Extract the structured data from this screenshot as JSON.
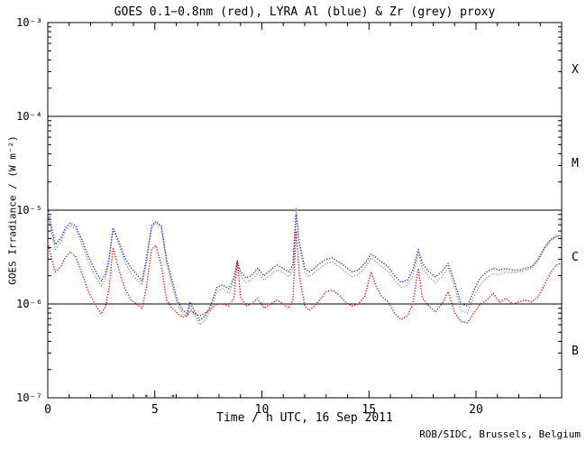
{
  "credit": "ROB/SIDC, Brussels, Belgium",
  "chart_data": {
    "type": "scatter",
    "title": "GOES 0.1−0.8nm (red), LYRA Al (blue) & Zr (grey) proxy",
    "xlabel": "Time / h UTC, 16 Sep 2011",
    "ylabel": "GOES Irradiance / (W m⁻²)",
    "x_range": [
      0,
      24
    ],
    "x_major_ticks": [
      0,
      5,
      10,
      15,
      20
    ],
    "x_minor_step": 1,
    "y_scale": "log",
    "y_range_exp": [
      -7,
      -3
    ],
    "y_tick_labels": [
      "10⁻³",
      "10⁻⁴",
      "10⁻⁵",
      "10⁻⁶",
      "10⁻⁷"
    ],
    "hline_values_exp": [
      -4,
      -5,
      -6
    ],
    "flare_classes": [
      {
        "label": "X",
        "exp_range": [
          -4,
          -3
        ]
      },
      {
        "label": "M",
        "exp_range": [
          -5,
          -4
        ]
      },
      {
        "label": "C",
        "exp_range": [
          -6,
          -5
        ]
      },
      {
        "label": "B",
        "exp_range": [
          -7,
          -6
        ]
      }
    ],
    "grid": "off",
    "legend": "in-title",
    "colors": {
      "axis": "#000000",
      "goes_red": "#dd1111",
      "lyra_al_blue": "#2233cc",
      "lyra_zr_grey": "#999999"
    },
    "unit_scale": 1e-06,
    "unit": "W m^-2 (values stored in units of 1e-6)",
    "hours": [
      0,
      0.15,
      0.35,
      0.6,
      0.85,
      1.05,
      1.3,
      1.6,
      1.9,
      2.2,
      2.5,
      2.7,
      2.85,
      3.05,
      3.3,
      3.6,
      3.9,
      4.2,
      4.4,
      4.6,
      4.85,
      5.05,
      5.3,
      5.55,
      5.8,
      6.05,
      6.3,
      6.5,
      6.65,
      6.9,
      7.1,
      7.35,
      7.6,
      7.9,
      8.15,
      8.45,
      8.7,
      8.85,
      9.0,
      9.25,
      9.5,
      9.8,
      10.1,
      10.4,
      10.7,
      11.0,
      11.25,
      11.45,
      11.6,
      11.75,
      12.0,
      12.2,
      12.45,
      12.7,
      13.0,
      13.3,
      13.6,
      13.9,
      14.2,
      14.5,
      14.8,
      15.1,
      15.35,
      15.6,
      15.9,
      16.2,
      16.5,
      16.8,
      17.05,
      17.3,
      17.5,
      17.8,
      18.1,
      18.4,
      18.7,
      19.0,
      19.3,
      19.6,
      19.9,
      20.2,
      20.5,
      20.8,
      21.1,
      21.4,
      21.7,
      22.0,
      22.3,
      22.6,
      22.9,
      23.2,
      23.5,
      23.75,
      23.95
    ],
    "series": [
      {
        "id": "lyra-zr",
        "name": "LYRA Zr proxy",
        "color": "#999999",
        "values": [
          9.5,
          6.0,
          3.8,
          4.5,
          6.1,
          6.9,
          6.3,
          4.3,
          2.8,
          2.0,
          1.55,
          1.85,
          2.7,
          6.1,
          4.4,
          2.8,
          2.1,
          1.8,
          1.6,
          2.7,
          6.4,
          7.3,
          6.5,
          2.7,
          1.6,
          1.0,
          0.78,
          0.74,
          0.95,
          0.72,
          0.6,
          0.68,
          0.85,
          1.35,
          1.45,
          1.3,
          1.7,
          2.6,
          2.0,
          1.7,
          1.8,
          2.15,
          1.8,
          2.05,
          2.3,
          2.15,
          1.95,
          2.3,
          10.5,
          4.2,
          2.15,
          1.95,
          2.15,
          2.4,
          2.7,
          2.8,
          2.5,
          2.2,
          1.95,
          2.05,
          2.4,
          3.1,
          2.8,
          2.5,
          2.2,
          1.8,
          1.5,
          1.6,
          2.0,
          3.5,
          2.4,
          1.95,
          1.7,
          1.95,
          2.4,
          1.5,
          0.85,
          0.8,
          1.2,
          1.6,
          1.9,
          2.1,
          2.05,
          2.2,
          2.15,
          2.2,
          2.3,
          2.4,
          2.9,
          3.9,
          4.8,
          5.2,
          5.3
        ]
      },
      {
        "id": "lyra-al",
        "name": "LYRA Al proxy",
        "color": "#2233cc",
        "values": [
          10.5,
          7.0,
          4.3,
          5.0,
          6.6,
          7.3,
          6.8,
          4.8,
          3.2,
          2.3,
          1.75,
          2.1,
          3.0,
          6.5,
          4.8,
          3.1,
          2.4,
          2.0,
          1.75,
          3.0,
          6.8,
          7.6,
          6.8,
          3.0,
          1.8,
          1.1,
          0.85,
          0.8,
          1.05,
          0.8,
          0.67,
          0.75,
          0.95,
          1.5,
          1.6,
          1.45,
          1.9,
          2.9,
          2.2,
          1.9,
          2.0,
          2.4,
          2.0,
          2.3,
          2.6,
          2.4,
          2.2,
          2.6,
          9.0,
          4.5,
          2.4,
          2.2,
          2.4,
          2.7,
          3.0,
          3.1,
          2.8,
          2.5,
          2.2,
          2.3,
          2.7,
          3.4,
          3.1,
          2.8,
          2.5,
          2.0,
          1.7,
          1.8,
          2.3,
          3.8,
          2.7,
          2.2,
          1.95,
          2.2,
          2.7,
          1.7,
          1.0,
          0.95,
          1.4,
          1.9,
          2.2,
          2.4,
          2.3,
          2.4,
          2.3,
          2.3,
          2.4,
          2.5,
          3.0,
          4.0,
          4.9,
          5.3,
          5.4
        ]
      },
      {
        "id": "goes",
        "name": "GOES 0.1-0.8nm",
        "color": "#dd1111",
        "values": [
          4.5,
          3.2,
          2.2,
          2.5,
          3.2,
          3.6,
          3.2,
          2.1,
          1.35,
          1.0,
          0.78,
          0.95,
          1.4,
          4.0,
          2.4,
          1.45,
          1.1,
          0.98,
          0.9,
          1.5,
          3.8,
          4.2,
          2.6,
          1.1,
          0.9,
          0.8,
          0.72,
          0.75,
          0.85,
          0.78,
          0.75,
          0.8,
          0.88,
          1.0,
          1.0,
          0.95,
          1.15,
          2.9,
          1.2,
          0.95,
          1.0,
          1.15,
          0.9,
          1.0,
          1.1,
          1.0,
          0.9,
          1.1,
          6.0,
          2.0,
          0.95,
          0.85,
          0.95,
          1.1,
          1.35,
          1.4,
          1.25,
          1.05,
          0.95,
          1.0,
          1.2,
          2.2,
          1.5,
          1.2,
          1.05,
          0.8,
          0.68,
          0.75,
          1.0,
          2.4,
          1.15,
          0.95,
          0.82,
          1.0,
          1.35,
          0.8,
          0.65,
          0.63,
          0.8,
          1.0,
          1.1,
          1.3,
          1.05,
          1.15,
          1.0,
          1.05,
          1.1,
          1.05,
          1.2,
          1.6,
          2.2,
          2.6,
          2.7
        ]
      }
    ],
    "extra_points": [
      {
        "series": "goes",
        "hour": 4.6,
        "value": 0.105,
        "color": "#dd1111"
      },
      {
        "series": "goes",
        "hour": 5.85,
        "value": 0.105,
        "color": "#dd1111"
      }
    ]
  }
}
